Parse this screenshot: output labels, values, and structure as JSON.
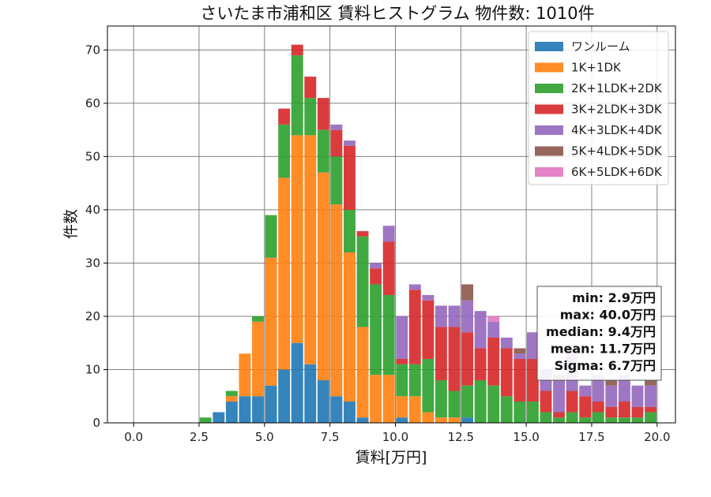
{
  "chart_data": {
    "type": "bar",
    "stacked": true,
    "title": "さいたま市浦和区 賃料ヒストグラム 物件数: 1010件",
    "xlabel": "賃料[万円]",
    "ylabel": "件数",
    "xlim": [
      -1.0,
      20.7
    ],
    "ylim": [
      0,
      74.5
    ],
    "bin_width": 0.5,
    "x": [
      2.25,
      2.75,
      3.25,
      3.75,
      4.25,
      4.75,
      5.25,
      5.75,
      6.25,
      6.75,
      7.25,
      7.75,
      8.25,
      8.75,
      9.25,
      9.75,
      10.25,
      10.75,
      11.25,
      11.75,
      12.25,
      12.75,
      13.25,
      13.75,
      14.25,
      14.75,
      15.25,
      15.75,
      16.25,
      16.75,
      17.25,
      17.75,
      18.25,
      18.75,
      19.25,
      19.75
    ],
    "xticks": [
      0.0,
      2.5,
      5.0,
      7.5,
      10.0,
      12.5,
      15.0,
      17.5,
      20.0
    ],
    "xtick_labels": [
      "0.0",
      "2.5",
      "5.0",
      "7.5",
      "10.0",
      "12.5",
      "15.0",
      "17.5",
      "20.0"
    ],
    "yticks": [
      0,
      10,
      20,
      30,
      40,
      50,
      60,
      70
    ],
    "ytick_labels": [
      "0",
      "10",
      "20",
      "30",
      "40",
      "50",
      "60",
      "70"
    ],
    "grid": true,
    "legend_position": "top-right",
    "series": [
      {
        "name": "ワンルーム",
        "color": "#1f77b4",
        "values": [
          0,
          0,
          2,
          4,
          5,
          5,
          7,
          10,
          15,
          11,
          8,
          5,
          4,
          1,
          0,
          0,
          1,
          0,
          0,
          0,
          0,
          1,
          0,
          0,
          0,
          0,
          0,
          0,
          0,
          0,
          0,
          0,
          0,
          0,
          0,
          0
        ]
      },
      {
        "name": "1K+1DK",
        "color": "#ff7f0e",
        "values": [
          0,
          0,
          0,
          1,
          8,
          14,
          24,
          36,
          39,
          43,
          39,
          36,
          28,
          17,
          9,
          9,
          4,
          5,
          2,
          1,
          1,
          0,
          0,
          0,
          0,
          0,
          0,
          0,
          0,
          0,
          0,
          0,
          0,
          0,
          0,
          0
        ]
      },
      {
        "name": "2K+1LDK+2DK",
        "color": "#2ca02c",
        "values": [
          0,
          1,
          0,
          1,
          0,
          1,
          8,
          10,
          15,
          7,
          8,
          9,
          8,
          17,
          17,
          15,
          6,
          6,
          10,
          7,
          5,
          6,
          8,
          7,
          5,
          4,
          4,
          2,
          1,
          2,
          1,
          2,
          1,
          1,
          1,
          2
        ]
      },
      {
        "name": "3K+2LDK+3DK",
        "color": "#d62728",
        "values": [
          0,
          0,
          0,
          0,
          0,
          0,
          0,
          3,
          2,
          4,
          6,
          5,
          12,
          1,
          3,
          10,
          1,
          14,
          11,
          10,
          12,
          10,
          6,
          9,
          9,
          8,
          8,
          4,
          1,
          4,
          4,
          2,
          2,
          3,
          2,
          1
        ]
      },
      {
        "name": "4K+3LDK+4DK",
        "color": "#9467bd",
        "values": [
          0,
          0,
          0,
          0,
          0,
          0,
          0,
          0,
          0,
          0,
          0,
          1,
          1,
          0,
          1,
          3,
          8,
          1,
          1,
          4,
          4,
          6,
          7,
          3,
          2,
          1,
          5,
          4,
          6,
          8,
          2,
          5,
          4,
          5,
          4,
          4
        ]
      },
      {
        "name": "5K+4LDK+5DK",
        "color": "#8c564b",
        "values": [
          0,
          0,
          0,
          0,
          0,
          0,
          0,
          0,
          0,
          0,
          0,
          0,
          0,
          0,
          0,
          0,
          0,
          0,
          0,
          0,
          0,
          3,
          0,
          0,
          0,
          1,
          0,
          0,
          1,
          0,
          0,
          0,
          1,
          0,
          0,
          1
        ]
      },
      {
        "name": "6K+5LDK+6DK",
        "color": "#e377c2",
        "values": [
          0,
          0,
          0,
          0,
          0,
          0,
          0,
          0,
          0,
          0,
          0,
          0,
          0,
          0,
          0,
          0,
          0,
          0,
          0,
          0,
          0,
          0,
          0,
          1,
          0,
          0,
          0,
          0,
          0,
          0,
          0,
          0,
          0,
          0,
          0,
          0
        ]
      }
    ],
    "annotations": {
      "min": "min: 2.9万円",
      "max": "max: 40.0万円",
      "median": "median: 9.4万円",
      "mean": "mean: 11.7万円",
      "sigma": "Sigma: 6.7万円"
    }
  }
}
